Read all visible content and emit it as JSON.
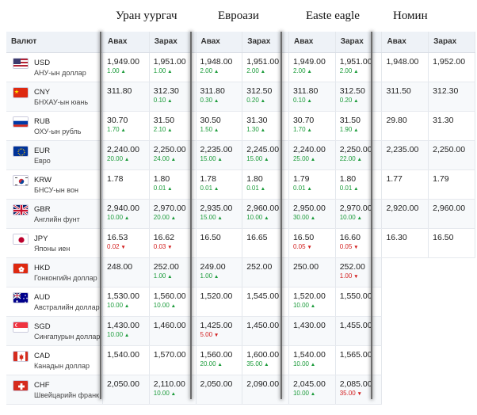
{
  "banks": [
    "Уран уургач",
    "Евроази",
    "Easte eagle",
    "Номин"
  ],
  "header": {
    "currency": "Валют",
    "buy": "Авах",
    "sell": "Зарах"
  },
  "colors": {
    "up": "#1b9b3a",
    "down": "#d21d1d"
  },
  "rows": [
    {
      "code": "USD",
      "name": "АНУ-ын доллар",
      "flag": "us-flag",
      "cells": [
        [
          "1,949.00",
          "1.00",
          "up"
        ],
        [
          "1,951.00",
          "1.00",
          "up"
        ],
        [
          "1,948.00",
          "2.00",
          "up"
        ],
        [
          "1,951.00",
          "2.00",
          "up"
        ],
        [
          "1,949.00",
          "2.00",
          "up"
        ],
        [
          "1,951.00",
          "2.00",
          "up"
        ],
        [
          "1,948.00",
          "",
          ""
        ],
        [
          "1,952.00",
          "",
          ""
        ]
      ]
    },
    {
      "code": "CNY",
      "name": "БНХАУ-ын юань",
      "flag": "cn-flag",
      "cells": [
        [
          "311.80",
          "",
          ""
        ],
        [
          "312.30",
          "0.10",
          "up"
        ],
        [
          "311.80",
          "0.30",
          "up"
        ],
        [
          "312.50",
          "0.20",
          "up"
        ],
        [
          "311.80",
          "0.10",
          "up"
        ],
        [
          "312.50",
          "0.20",
          "up"
        ],
        [
          "311.50",
          "",
          ""
        ],
        [
          "312.30",
          "",
          ""
        ]
      ]
    },
    {
      "code": "RUB",
      "name": "ОХУ-ын рубль",
      "flag": "ru-flag",
      "cells": [
        [
          "30.70",
          "1.70",
          "up"
        ],
        [
          "31.50",
          "2.10",
          "up"
        ],
        [
          "30.50",
          "1.50",
          "up"
        ],
        [
          "31.30",
          "1.30",
          "up"
        ],
        [
          "30.70",
          "1.70",
          "up"
        ],
        [
          "31.50",
          "1.90",
          "up"
        ],
        [
          "29.80",
          "",
          ""
        ],
        [
          "31.30",
          "",
          ""
        ]
      ]
    },
    {
      "code": "EUR",
      "name": "Евро",
      "flag": "eu-flag",
      "cells": [
        [
          "2,240.00",
          "20.00",
          "up"
        ],
        [
          "2,250.00",
          "24.00",
          "up"
        ],
        [
          "2,235.00",
          "15.00",
          "up"
        ],
        [
          "2,245.00",
          "15.00",
          "up"
        ],
        [
          "2,240.00",
          "25.00",
          "up"
        ],
        [
          "2,250.00",
          "22.00",
          "up"
        ],
        [
          "2,235.00",
          "",
          ""
        ],
        [
          "2,250.00",
          "",
          ""
        ]
      ]
    },
    {
      "code": "KRW",
      "name": "БНСУ-ын вон",
      "flag": "kr-flag",
      "cells": [
        [
          "1.78",
          "",
          ""
        ],
        [
          "1.80",
          "0.01",
          "up"
        ],
        [
          "1.78",
          "0.01",
          "up"
        ],
        [
          "1.80",
          "0.01",
          "up"
        ],
        [
          "1.79",
          "0.01",
          "up"
        ],
        [
          "1.80",
          "0.01",
          "up"
        ],
        [
          "1.77",
          "",
          ""
        ],
        [
          "1.79",
          "",
          ""
        ]
      ]
    },
    {
      "code": "GBR",
      "name": "Английн фунт",
      "flag": "gb-flag",
      "cells": [
        [
          "2,940.00",
          "10.00",
          "up"
        ],
        [
          "2,970.00",
          "20.00",
          "up"
        ],
        [
          "2,935.00",
          "15.00",
          "up"
        ],
        [
          "2,960.00",
          "10.00",
          "up"
        ],
        [
          "2,950.00",
          "30.00",
          "up"
        ],
        [
          "2,970.00",
          "10.00",
          "up"
        ],
        [
          "2,920.00",
          "",
          ""
        ],
        [
          "2,960.00",
          "",
          ""
        ]
      ]
    },
    {
      "code": "JPY",
      "name": "Японы иен",
      "flag": "jp-flag",
      "cells": [
        [
          "16.53",
          "0.02",
          "down"
        ],
        [
          "16.62",
          "0.03",
          "down"
        ],
        [
          "16.50",
          "",
          ""
        ],
        [
          "16.65",
          "",
          ""
        ],
        [
          "16.50",
          "0.05",
          "down"
        ],
        [
          "16.60",
          "0.05",
          "down"
        ],
        [
          "16.30",
          "",
          ""
        ],
        [
          "16.50",
          "",
          ""
        ]
      ]
    },
    {
      "code": "HKD",
      "name": "Гонконгийн доллар",
      "flag": "hk-flag",
      "cells": [
        [
          "248.00",
          "",
          ""
        ],
        [
          "252.00",
          "1.00",
          "up"
        ],
        [
          "249.00",
          "1.00",
          "up"
        ],
        [
          "252.00",
          "",
          ""
        ],
        [
          "250.00",
          "",
          ""
        ],
        [
          "252.00",
          "1.00",
          "down"
        ]
      ]
    },
    {
      "code": "AUD",
      "name": "Австралийн доллар",
      "flag": "au-flag",
      "cells": [
        [
          "1,530.00",
          "10.00",
          "up"
        ],
        [
          "1,560.00",
          "10.00",
          "up"
        ],
        [
          "1,520.00",
          "",
          ""
        ],
        [
          "1,545.00",
          "",
          ""
        ],
        [
          "1,520.00",
          "10.00",
          "up"
        ],
        [
          "1,550.00",
          "",
          ""
        ]
      ]
    },
    {
      "code": "SGD",
      "name": "Сингапурын доллар",
      "flag": "sg-flag",
      "cells": [
        [
          "1,430.00",
          "10.00",
          "up"
        ],
        [
          "1,460.00",
          "",
          ""
        ],
        [
          "1,425.00",
          "5.00",
          "down"
        ],
        [
          "1,450.00",
          "",
          ""
        ],
        [
          "1,430.00",
          "",
          ""
        ],
        [
          "1,455.00",
          "",
          ""
        ]
      ]
    },
    {
      "code": "CAD",
      "name": "Канадын доллар",
      "flag": "ca-flag",
      "cells": [
        [
          "1,540.00",
          "",
          ""
        ],
        [
          "1,570.00",
          "",
          ""
        ],
        [
          "1,560.00",
          "20.00",
          "up"
        ],
        [
          "1,600.00",
          "35.00",
          "up"
        ],
        [
          "1,540.00",
          "10.00",
          "up"
        ],
        [
          "1,565.00",
          "",
          ""
        ]
      ]
    },
    {
      "code": "CHF",
      "name": "Швейцарийн франк",
      "flag": "ch-flag",
      "cells": [
        [
          "2,050.00",
          "",
          ""
        ],
        [
          "2,110.00",
          "10.00",
          "up"
        ],
        [
          "2,050.00",
          "",
          ""
        ],
        [
          "2,090.00",
          "",
          ""
        ],
        [
          "2,045.00",
          "10.00",
          "up"
        ],
        [
          "2,085.00",
          "35.00",
          "down"
        ]
      ]
    }
  ]
}
